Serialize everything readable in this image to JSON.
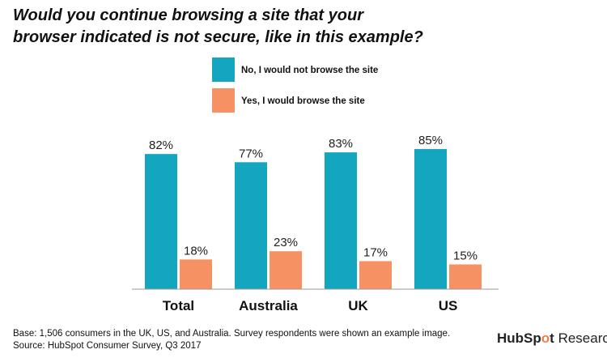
{
  "chart_data": {
    "type": "bar",
    "title": [
      "Would you continue browsing a site that your",
      "browser indicated is not secure, like in this example?"
    ],
    "categories": [
      "Total",
      "Australia",
      "UK",
      "US"
    ],
    "series": [
      {
        "name": "No, I would not browse the site",
        "values": [
          82,
          77,
          83,
          85
        ],
        "color": "#14a6bf"
      },
      {
        "name": "Yes, I would browse the site",
        "values": [
          18,
          23,
          17,
          15
        ],
        "color": "#f59163"
      }
    ],
    "value_suffix": "%",
    "ylim": [
      0,
      100
    ],
    "grid": false,
    "legend": "top-center"
  },
  "footer": {
    "base": "Base: 1,506 consumers in the UK, US, and Australia. Survey respondents were shown an example image.",
    "source": "Source: HubSpot Consumer Survey, Q3 2017"
  },
  "brand": {
    "hub": "HubSp",
    "spot_o": "o",
    "t": "t",
    "research": "Research",
    "accent": "#f27b45"
  }
}
